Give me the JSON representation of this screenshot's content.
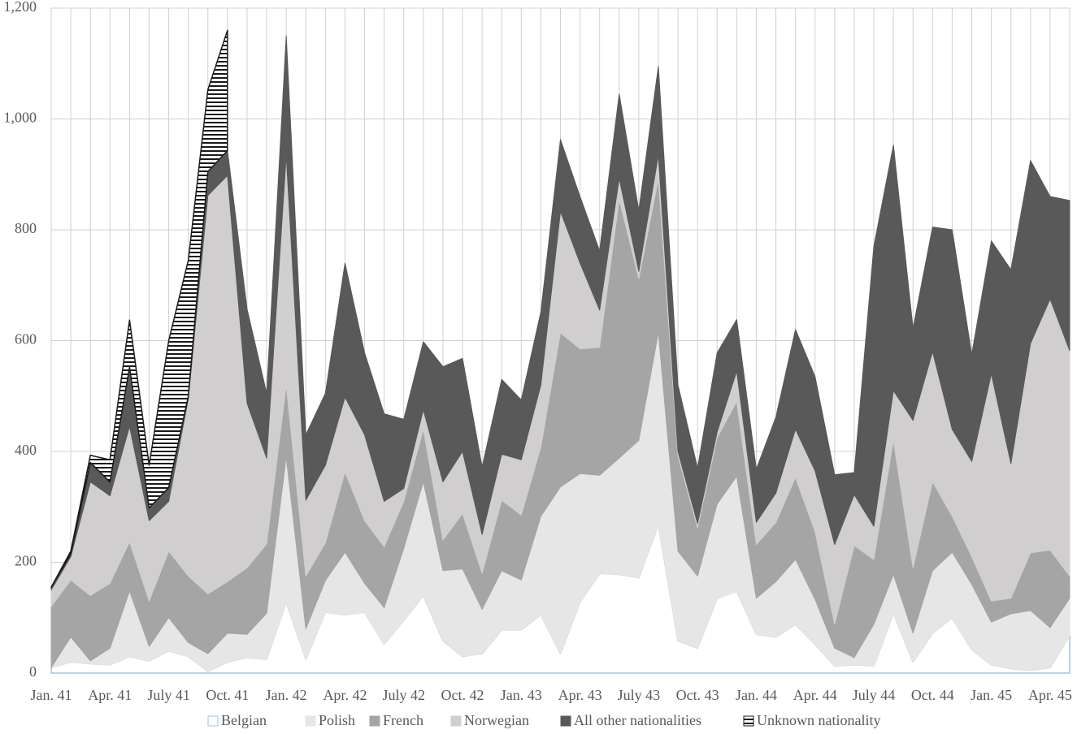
{
  "chart_data": {
    "type": "stacked_area",
    "categories": [
      "Jan. 41",
      null,
      null,
      "Apr. 41",
      null,
      null,
      "July 41",
      null,
      null,
      "Oct. 41",
      null,
      null,
      "Jan. 42",
      null,
      null,
      "Apr. 42",
      null,
      null,
      "July 42",
      null,
      null,
      "Oct. 42",
      null,
      null,
      "Jan. 43",
      null,
      null,
      "Apr. 43",
      null,
      null,
      "July 43",
      null,
      null,
      "Oct. 43",
      null,
      null,
      "Jan. 44",
      null,
      null,
      "Apr. 44",
      null,
      null,
      "July 44",
      null,
      null,
      "Oct. 44",
      null,
      null,
      "Jan. 45",
      null,
      null,
      "Apr. 45",
      null
    ],
    "ylim": [
      0,
      1200
    ],
    "yticks": [
      0,
      200,
      400,
      600,
      800,
      {
        "value": 1000,
        "label": "1,000"
      },
      {
        "value": 1200,
        "label": "1,200"
      }
    ],
    "grid": true,
    "legend": "bottom",
    "series": [
      {
        "name": "Belgian",
        "color": "#ffffff",
        "edgecolor": "#9dc3e6",
        "values": [
          10,
          20,
          17,
          15,
          30,
          22,
          40,
          30,
          3,
          20,
          28,
          25,
          128,
          25,
          110,
          105,
          110,
          52,
          95,
          140,
          58,
          30,
          35,
          78,
          78,
          105,
          35,
          128,
          180,
          178,
          172,
          268,
          58,
          45,
          135,
          148,
          70,
          65,
          88,
          52,
          13,
          15,
          13,
          108,
          20,
          72,
          100,
          42,
          15,
          8,
          5,
          10,
          68
        ]
      },
      {
        "name": "Polish",
        "color": "#e7e6e6",
        "values": [
          0,
          45,
          5,
          30,
          118,
          26,
          60,
          25,
          32,
          52,
          42,
          83,
          262,
          55,
          57,
          113,
          52,
          66,
          130,
          205,
          127,
          158,
          80,
          107,
          90,
          178,
          301,
          232,
          177,
          210,
          248,
          347,
          162,
          130,
          170,
          207,
          65,
          100,
          117,
          81,
          32,
          13,
          75,
          70,
          52,
          113,
          118,
          118,
          77,
          99,
          108,
          72,
          67
        ]
      },
      {
        "name": "French",
        "color": "#a5a5a5",
        "values": [
          110,
          103,
          118,
          117,
          89,
          82,
          120,
          120,
          108,
          93,
          120,
          125,
          130,
          95,
          68,
          145,
          113,
          110,
          85,
          95,
          55,
          100,
          65,
          127,
          117,
          125,
          278,
          225,
          231,
          467,
          292,
          277,
          172,
          87,
          120,
          135,
          97,
          107,
          148,
          122,
          43,
          202,
          117,
          242,
          118,
          160,
          65,
          50,
          38,
          28,
          104,
          140,
          40
        ]
      },
      {
        "name": "Norwegian",
        "color": "#d0cece",
        "values": [
          30,
          42,
          205,
          158,
          208,
          145,
          90,
          320,
          719,
          733,
          297,
          155,
          415,
          137,
          140,
          135,
          155,
          82,
          23,
          35,
          105,
          112,
          70,
          83,
          100,
          112,
          219,
          155,
          67,
          38,
          13,
          43,
          8,
          8,
          10,
          55,
          40,
          53,
          87,
          110,
          144,
          92,
          60,
          90,
          266,
          235,
          157,
          172,
          410,
          243,
          378,
          453,
          407
        ]
      },
      {
        "name": "All other nationalities",
        "color": "#595959",
        "values": [
          5,
          5,
          35,
          25,
          107,
          23,
          25,
          5,
          43,
          45,
          170,
          117,
          215,
          118,
          130,
          242,
          148,
          158,
          125,
          123,
          208,
          168,
          122,
          135,
          108,
          132,
          130,
          120,
          107,
          152,
          110,
          160,
          120,
          100,
          143,
          93,
          96,
          137,
          180,
          170,
          126,
          40,
          505,
          443,
          166,
          225,
          360,
          193,
          240,
          350,
          330,
          185,
          271
        ]
      },
      {
        "name": "Unknown nationality",
        "color": "#1a1a1a",
        "pattern": "horizontal-lines",
        "values": [
          0,
          5,
          13,
          40,
          85,
          77,
          265,
          245,
          148,
          217,
          null,
          null,
          null,
          null,
          null,
          null,
          null,
          null,
          null,
          null,
          null,
          null,
          null,
          null,
          null,
          null,
          null,
          null,
          null,
          null,
          null,
          null,
          null,
          null,
          null,
          null,
          null,
          null,
          null,
          null,
          null,
          null,
          null,
          null,
          null,
          null,
          null,
          null,
          null,
          null,
          null,
          null,
          null
        ]
      }
    ]
  }
}
